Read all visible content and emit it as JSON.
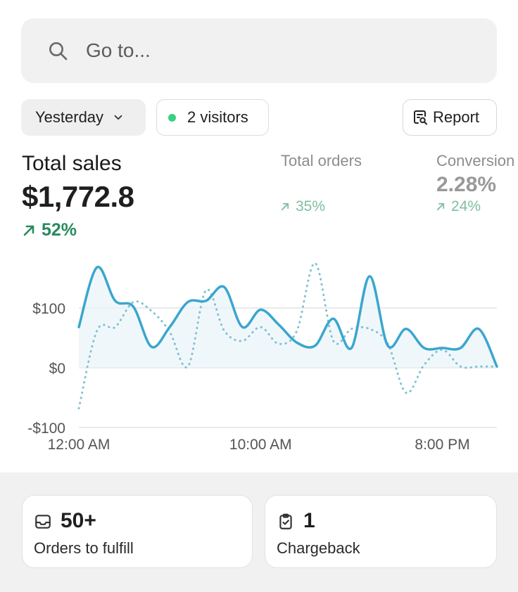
{
  "search": {
    "placeholder": "Go to..."
  },
  "filters": {
    "date_label": "Yesterday",
    "visitors_label": "2 visitors",
    "report_label": "Report"
  },
  "metrics": {
    "total_sales": {
      "label": "Total sales",
      "value": "$1,772.8",
      "change": "52%"
    },
    "total_orders": {
      "label": "Total orders",
      "value": "",
      "change": "35%"
    },
    "conversion": {
      "label": "Conversion",
      "value": "2.28%",
      "change": "24%"
    }
  },
  "chart_data": {
    "type": "line",
    "title": "",
    "xlabel": "",
    "ylabel": "",
    "x_ticks": [
      "12:00 AM",
      "10:00 AM",
      "8:00 PM"
    ],
    "y_ticks": [
      "$100",
      "$0",
      "-$100"
    ],
    "ylim": [
      -100,
      200
    ],
    "grid": true,
    "legend": "none",
    "x": [
      0,
      1,
      2,
      3,
      4,
      5,
      6,
      7,
      8,
      9,
      10,
      11,
      12,
      13,
      14,
      15,
      16,
      17,
      18,
      19,
      20,
      21,
      22,
      23
    ],
    "series": [
      {
        "style": "solid",
        "color": "#3aa6cf",
        "values": [
          68,
          168,
          112,
          102,
          35,
          68,
          110,
          112,
          135,
          68,
          97,
          72,
          42,
          37,
          82,
          33,
          153,
          37,
          65,
          33,
          33,
          33,
          65,
          2
        ]
      },
      {
        "style": "dotted",
        "color": "#82c2d4",
        "values": [
          -68,
          62,
          68,
          110,
          95,
          60,
          2,
          130,
          62,
          45,
          68,
          40,
          62,
          175,
          45,
          65,
          65,
          40,
          -42,
          5,
          30,
          2,
          2,
          2
        ]
      }
    ]
  },
  "tasks": [
    {
      "count": "50+",
      "label": "Orders to fulfill"
    },
    {
      "count": "1",
      "label": "Chargeback"
    }
  ],
  "colors": {
    "accent_line": "#3aa6cf",
    "positive": "#2a8a5e",
    "status_dot": "#36d27f"
  }
}
